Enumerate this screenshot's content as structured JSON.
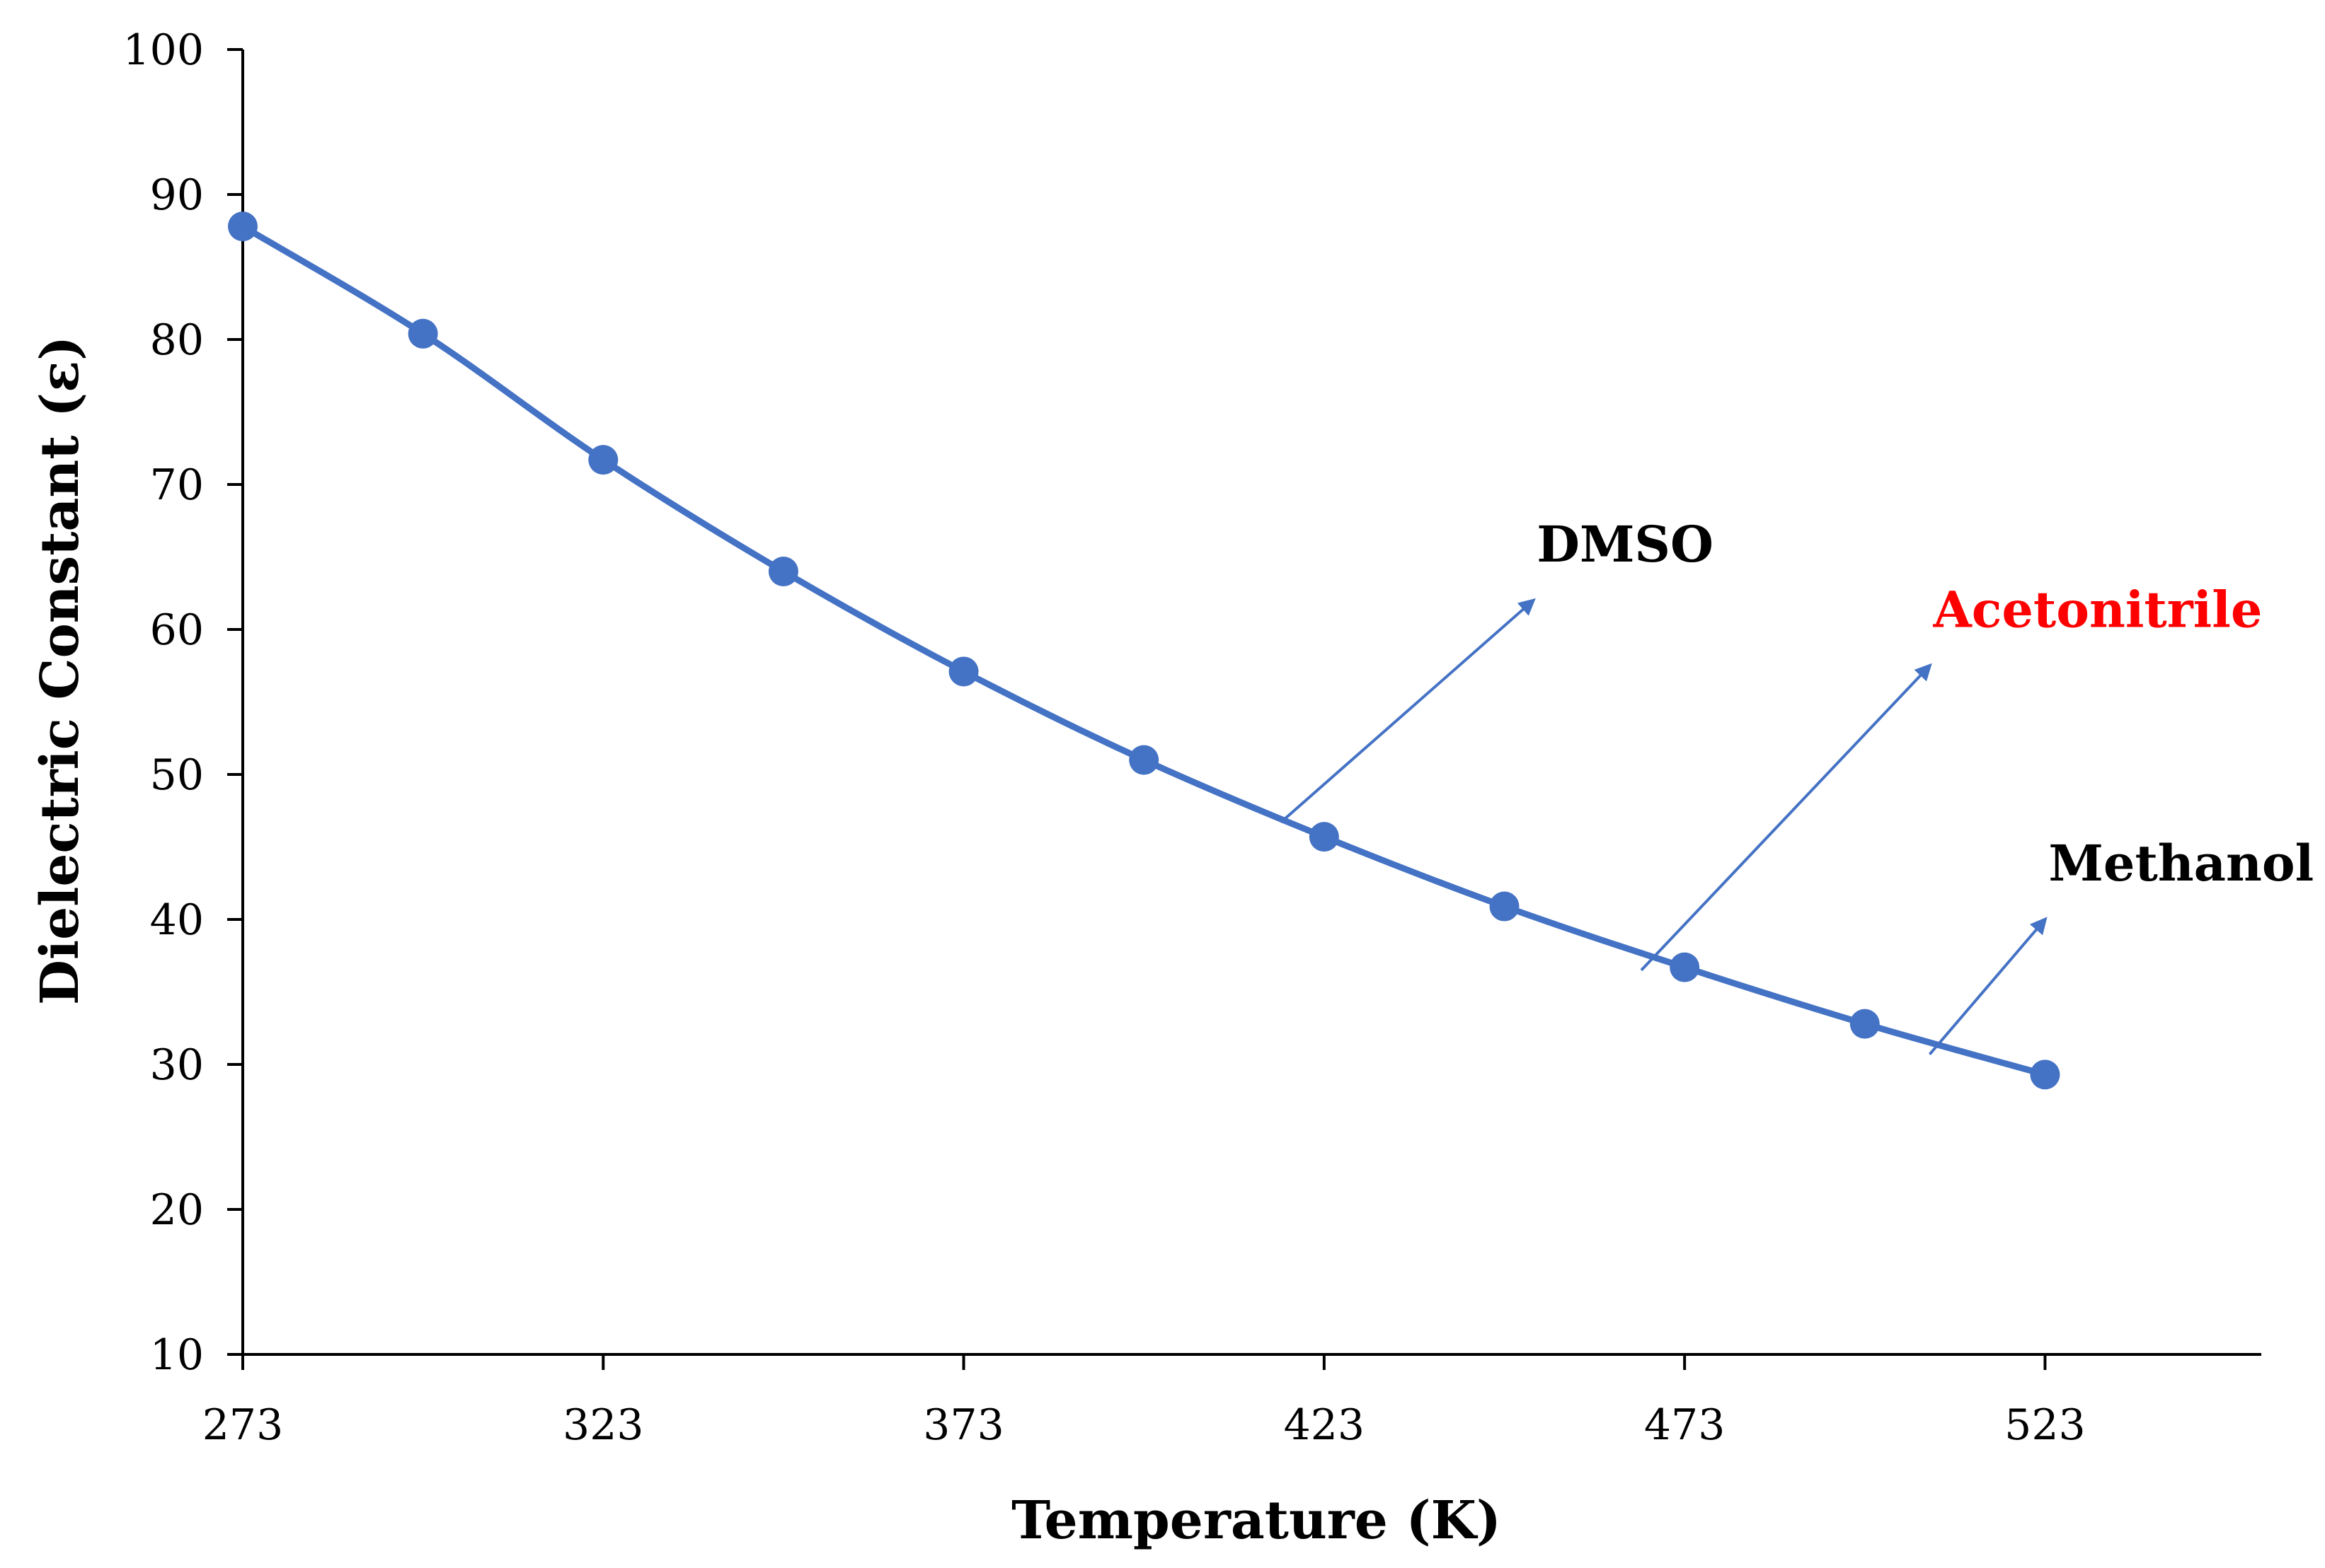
{
  "chart_data": {
    "type": "line",
    "title": "",
    "xlabel": "Temperature (K)",
    "ylabel": "Dielectric Constant (ε)",
    "xlim": [
      273,
      553
    ],
    "ylim": [
      10,
      100
    ],
    "x_ticks": [
      273,
      323,
      373,
      423,
      473,
      523
    ],
    "y_ticks": [
      10,
      20,
      30,
      40,
      50,
      60,
      70,
      80,
      90,
      100
    ],
    "series": [
      {
        "name": "Dielectric Constant",
        "color": "#4472C4",
        "x": [
          273,
          298,
          323,
          348,
          373,
          398,
          423,
          448,
          473,
          498,
          523
        ],
        "y": [
          87.8,
          80.4,
          71.7,
          64.0,
          57.1,
          51.0,
          45.7,
          40.9,
          36.7,
          32.8,
          29.3
        ]
      }
    ],
    "annotations": [
      {
        "label": "DMSO",
        "color": "#000000",
        "arrow_color": "#4472C4",
        "from": [
          417,
          46.7
        ],
        "to": [
          452,
          62.0
        ]
      },
      {
        "label": "Acetonitrile",
        "color": "#FF0000",
        "arrow_color": "#4472C4",
        "from": [
          467,
          36.5
        ],
        "to": [
          507,
          57.5
        ]
      },
      {
        "label": "Methanol",
        "color": "#000000",
        "arrow_color": "#4472C4",
        "from": [
          507,
          30.7
        ],
        "to": [
          523,
          40.0
        ]
      }
    ]
  }
}
